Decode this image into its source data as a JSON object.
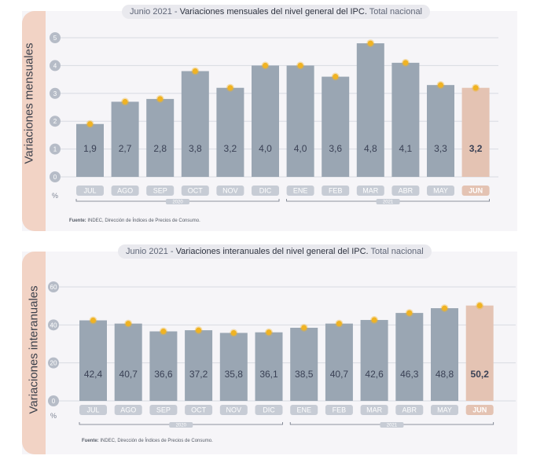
{
  "chart_data": [
    {
      "type": "bar",
      "title_prefix": "Junio 2021 - ",
      "title_main": "Variaciones mensuales del nivel general del IPC.",
      "title_suffix": " Total nacional",
      "ylabel": "Variaciones mensuales",
      "unit": "%",
      "ylim": [
        0,
        5
      ],
      "yticks": [
        "0",
        "1",
        "2",
        "3",
        "4",
        "5"
      ],
      "categories": [
        "JUL",
        "AGO",
        "SEP",
        "OCT",
        "NOV",
        "DIC",
        "ENE",
        "FEB",
        "MAR",
        "ABR",
        "MAY",
        "JUN"
      ],
      "values": [
        1.9,
        2.7,
        2.8,
        3.8,
        3.2,
        4.0,
        4.0,
        3.6,
        4.8,
        4.1,
        3.3,
        3.2
      ],
      "value_labels": [
        "1,9",
        "2,7",
        "2,8",
        "3,8",
        "3,2",
        "4,0",
        "4,0",
        "3,6",
        "4,8",
        "4,1",
        "3,3",
        "3,2"
      ],
      "year_groups": [
        {
          "label": "2020",
          "start": 0,
          "end": 5
        },
        {
          "label": "2021",
          "start": 6,
          "end": 11
        }
      ],
      "highlight_index": 11,
      "source_bold": "Fuente:",
      "source_text": " INDEC, Dirección de Índices de Precios de Consumo.",
      "colors": {
        "bar": "#9aa6b3",
        "highlight": "#e4c3b3",
        "marker": "#f0b323",
        "axis_pill": "#c7ccd5"
      }
    },
    {
      "type": "bar",
      "title_prefix": "Junio 2021 - ",
      "title_main": "Variaciones interanuales del nivel general del IPC.",
      "title_suffix": " Total nacional",
      "ylabel": "Variaciones interanuales",
      "unit": "%",
      "ylim": [
        0,
        60
      ],
      "yticks": [
        "0",
        "20",
        "40",
        "60"
      ],
      "categories": [
        "JUL",
        "AGO",
        "SEP",
        "OCT",
        "NOV",
        "DIC",
        "ENE",
        "FEB",
        "MAR",
        "ABR",
        "MAY",
        "JUN"
      ],
      "values": [
        42.4,
        40.7,
        36.6,
        37.2,
        35.8,
        36.1,
        38.5,
        40.7,
        42.6,
        46.3,
        48.8,
        50.2
      ],
      "value_labels": [
        "42,4",
        "40,7",
        "36,6",
        "37,2",
        "35,8",
        "36,1",
        "38,5",
        "40,7",
        "42,6",
        "46,3",
        "48,8",
        "50,2"
      ],
      "year_groups": [
        {
          "label": "2020",
          "start": 0,
          "end": 5
        },
        {
          "label": "2021",
          "start": 6,
          "end": 11
        }
      ],
      "highlight_index": 11,
      "source_bold": "Fuente:",
      "source_text": " INDEC, Dirección de Índices de Precios de Consumo.",
      "colors": {
        "bar": "#9aa6b3",
        "highlight": "#e4c3b3",
        "marker": "#f0b323",
        "axis_pill": "#c7ccd5"
      }
    }
  ]
}
